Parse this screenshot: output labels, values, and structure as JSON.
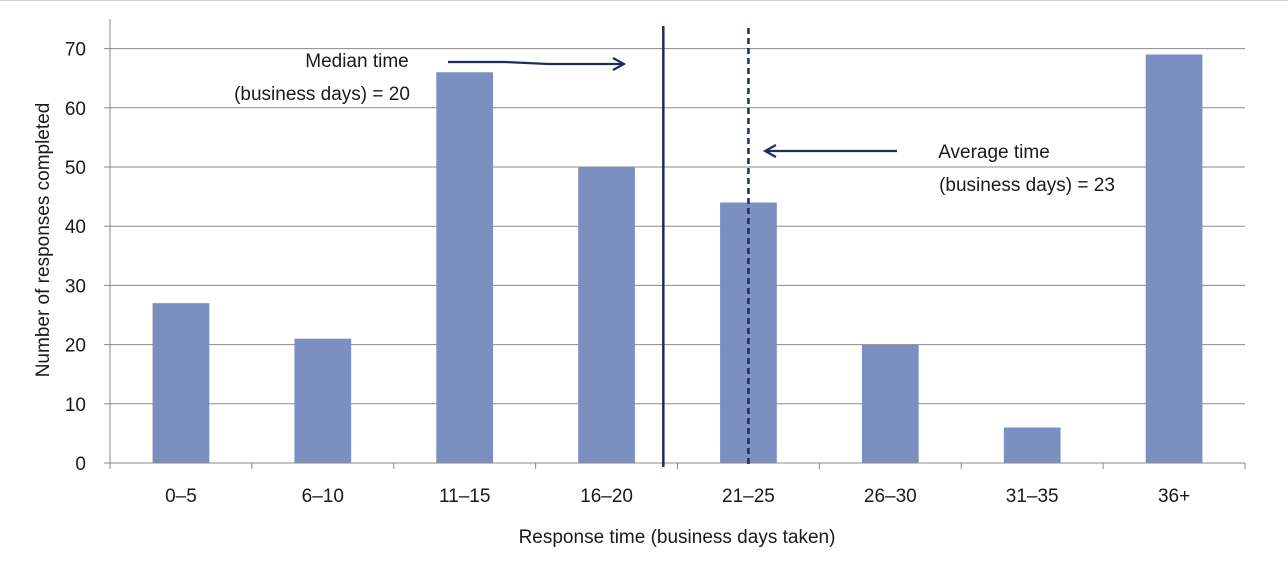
{
  "chart_data": {
    "type": "bar",
    "categories": [
      "0–5",
      "6–10",
      "11–15",
      "16–20",
      "21–25",
      "26–30",
      "31–35",
      "36+"
    ],
    "values": [
      27,
      21,
      66,
      50,
      44,
      20,
      6,
      69
    ],
    "xlabel": "Response time (business days taken)",
    "ylabel": "Number of responses completed",
    "ylim": [
      0,
      75
    ],
    "yticks": [
      0,
      10,
      20,
      30,
      40,
      50,
      60,
      70
    ],
    "grid": true,
    "legend": "none",
    "bar_color": "#7b8fc0",
    "reference_lines": [
      {
        "name": "median",
        "x": 20,
        "style": "solid",
        "color": "#1f2d5c",
        "label_line1": "Median time",
        "label_line2": "(business days) = 20"
      },
      {
        "name": "average",
        "x": 23,
        "style": "dashed",
        "color": "#1f2d5c",
        "label_line1": "Average time",
        "label_line2": "(business days) = 23"
      }
    ]
  }
}
